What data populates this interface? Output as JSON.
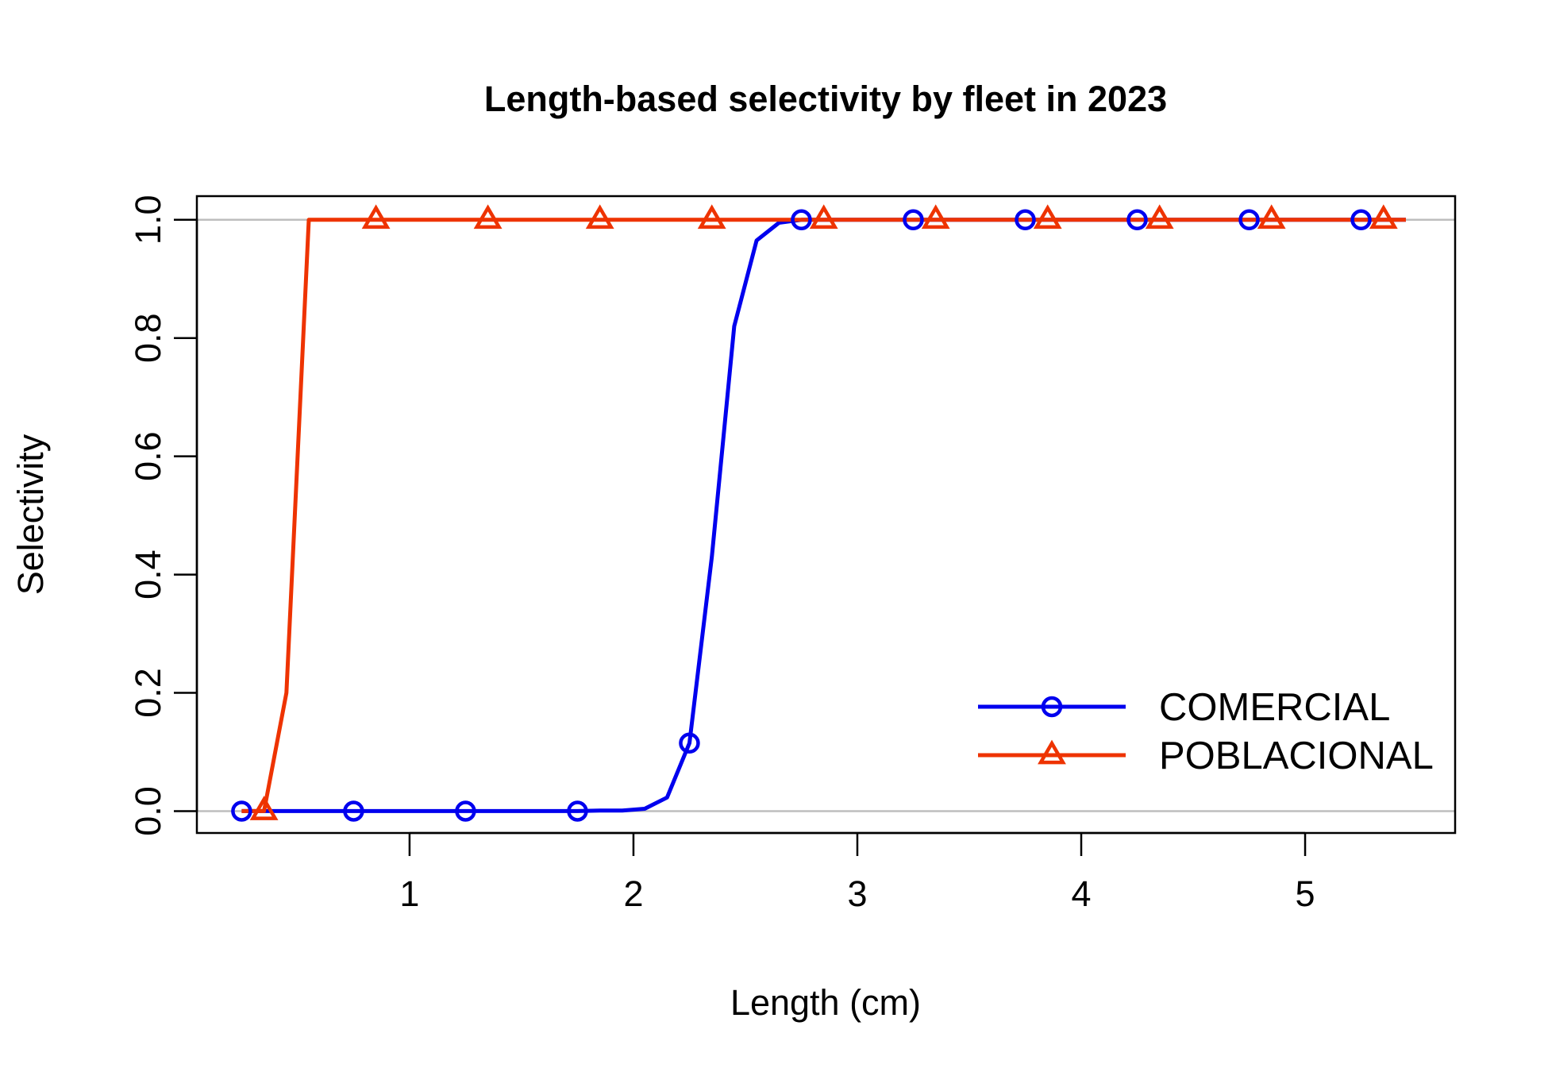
{
  "chart_data": {
    "type": "line",
    "title": "Length-based selectivity by fleet in 2023",
    "xlabel": "Length (cm)",
    "ylabel": "Selectivity",
    "xlim": [
      0.05,
      5.67
    ],
    "ylim": [
      -0.037,
      1.04
    ],
    "xticks": [
      1,
      2,
      3,
      4,
      5
    ],
    "xtick_labels": [
      "1",
      "2",
      "3",
      "4",
      "5"
    ],
    "yticks": [
      0.0,
      0.2,
      0.4,
      0.6,
      0.8,
      1.0
    ],
    "ytick_labels": [
      "0.0",
      "0.2",
      "0.4",
      "0.6",
      "0.8",
      "1.0"
    ],
    "reference_lines": [
      0,
      1
    ],
    "reference_line_color": "#bebebe",
    "legend_position": "bottom-right",
    "series": [
      {
        "name": "COMERCIAL",
        "color": "#0000ee",
        "marker": "circle",
        "x": [
          0.25,
          0.35,
          0.45,
          0.55,
          0.65,
          0.75,
          0.85,
          0.95,
          1.05,
          1.15,
          1.25,
          1.35,
          1.45,
          1.55,
          1.65,
          1.75,
          1.85,
          1.95,
          2.05,
          2.15,
          2.25,
          2.35,
          2.45,
          2.55,
          2.65,
          2.75,
          2.85,
          2.95,
          3.05,
          3.15,
          3.25,
          3.35,
          3.45,
          3.55,
          3.65,
          3.75,
          3.85,
          3.95,
          4.05,
          4.15,
          4.25,
          4.35,
          4.45,
          4.55,
          4.65,
          4.75,
          4.85,
          4.95,
          5.05,
          5.15,
          5.25,
          5.35,
          5.45
        ],
        "y": [
          0,
          0,
          0,
          0,
          0,
          0,
          0,
          0,
          0,
          0,
          0,
          0,
          0,
          0,
          0,
          0,
          0.001,
          0.001,
          0.004,
          0.023,
          0.115,
          0.43,
          0.82,
          0.965,
          0.995,
          1,
          1,
          1,
          1,
          1,
          1,
          1,
          1,
          1,
          1,
          1,
          1,
          1,
          1,
          1,
          1,
          1,
          1,
          1,
          1,
          1,
          1,
          1,
          1,
          1,
          1,
          1,
          1
        ],
        "marker_x": [
          0.25,
          0.75,
          1.25,
          1.75,
          2.25,
          2.75,
          3.25,
          3.75,
          4.25,
          4.75,
          5.25
        ],
        "marker_y": [
          0,
          0,
          0,
          0,
          0.115,
          1,
          1,
          1,
          1,
          1,
          1
        ]
      },
      {
        "name": "POBLACIONAL",
        "color": "#ee3300",
        "marker": "triangle",
        "x": [
          0.25,
          0.35,
          0.45,
          0.55,
          0.65,
          0.75,
          0.85,
          0.95,
          1.05,
          1.15,
          1.25,
          1.35,
          1.45,
          1.55,
          1.65,
          1.75,
          1.85,
          1.95,
          2.05,
          2.15,
          2.25,
          2.35,
          2.45,
          2.55,
          2.65,
          2.75,
          2.85,
          2.95,
          3.05,
          3.15,
          3.25,
          3.35,
          3.45,
          3.55,
          3.65,
          3.75,
          3.85,
          3.95,
          4.05,
          4.15,
          4.25,
          4.35,
          4.45,
          4.55,
          4.65,
          4.75,
          4.85,
          4.95,
          5.05,
          5.15,
          5.25,
          5.35,
          5.45
        ],
        "y": [
          0,
          0,
          0.2,
          1,
          1,
          1,
          1,
          1,
          1,
          1,
          1,
          1,
          1,
          1,
          1,
          1,
          1,
          1,
          1,
          1,
          1,
          1,
          1,
          1,
          1,
          1,
          1,
          1,
          1,
          1,
          1,
          1,
          1,
          1,
          1,
          1,
          1,
          1,
          1,
          1,
          1,
          1,
          1,
          1,
          1,
          1,
          1,
          1,
          1,
          1,
          1,
          1,
          1
        ],
        "marker_x": [
          0.35,
          0.85,
          1.35,
          1.85,
          2.35,
          2.85,
          3.35,
          3.85,
          4.35,
          4.85,
          5.35
        ],
        "marker_y": [
          0,
          1,
          1,
          1,
          1,
          1,
          1,
          1,
          1,
          1,
          1
        ]
      }
    ]
  }
}
